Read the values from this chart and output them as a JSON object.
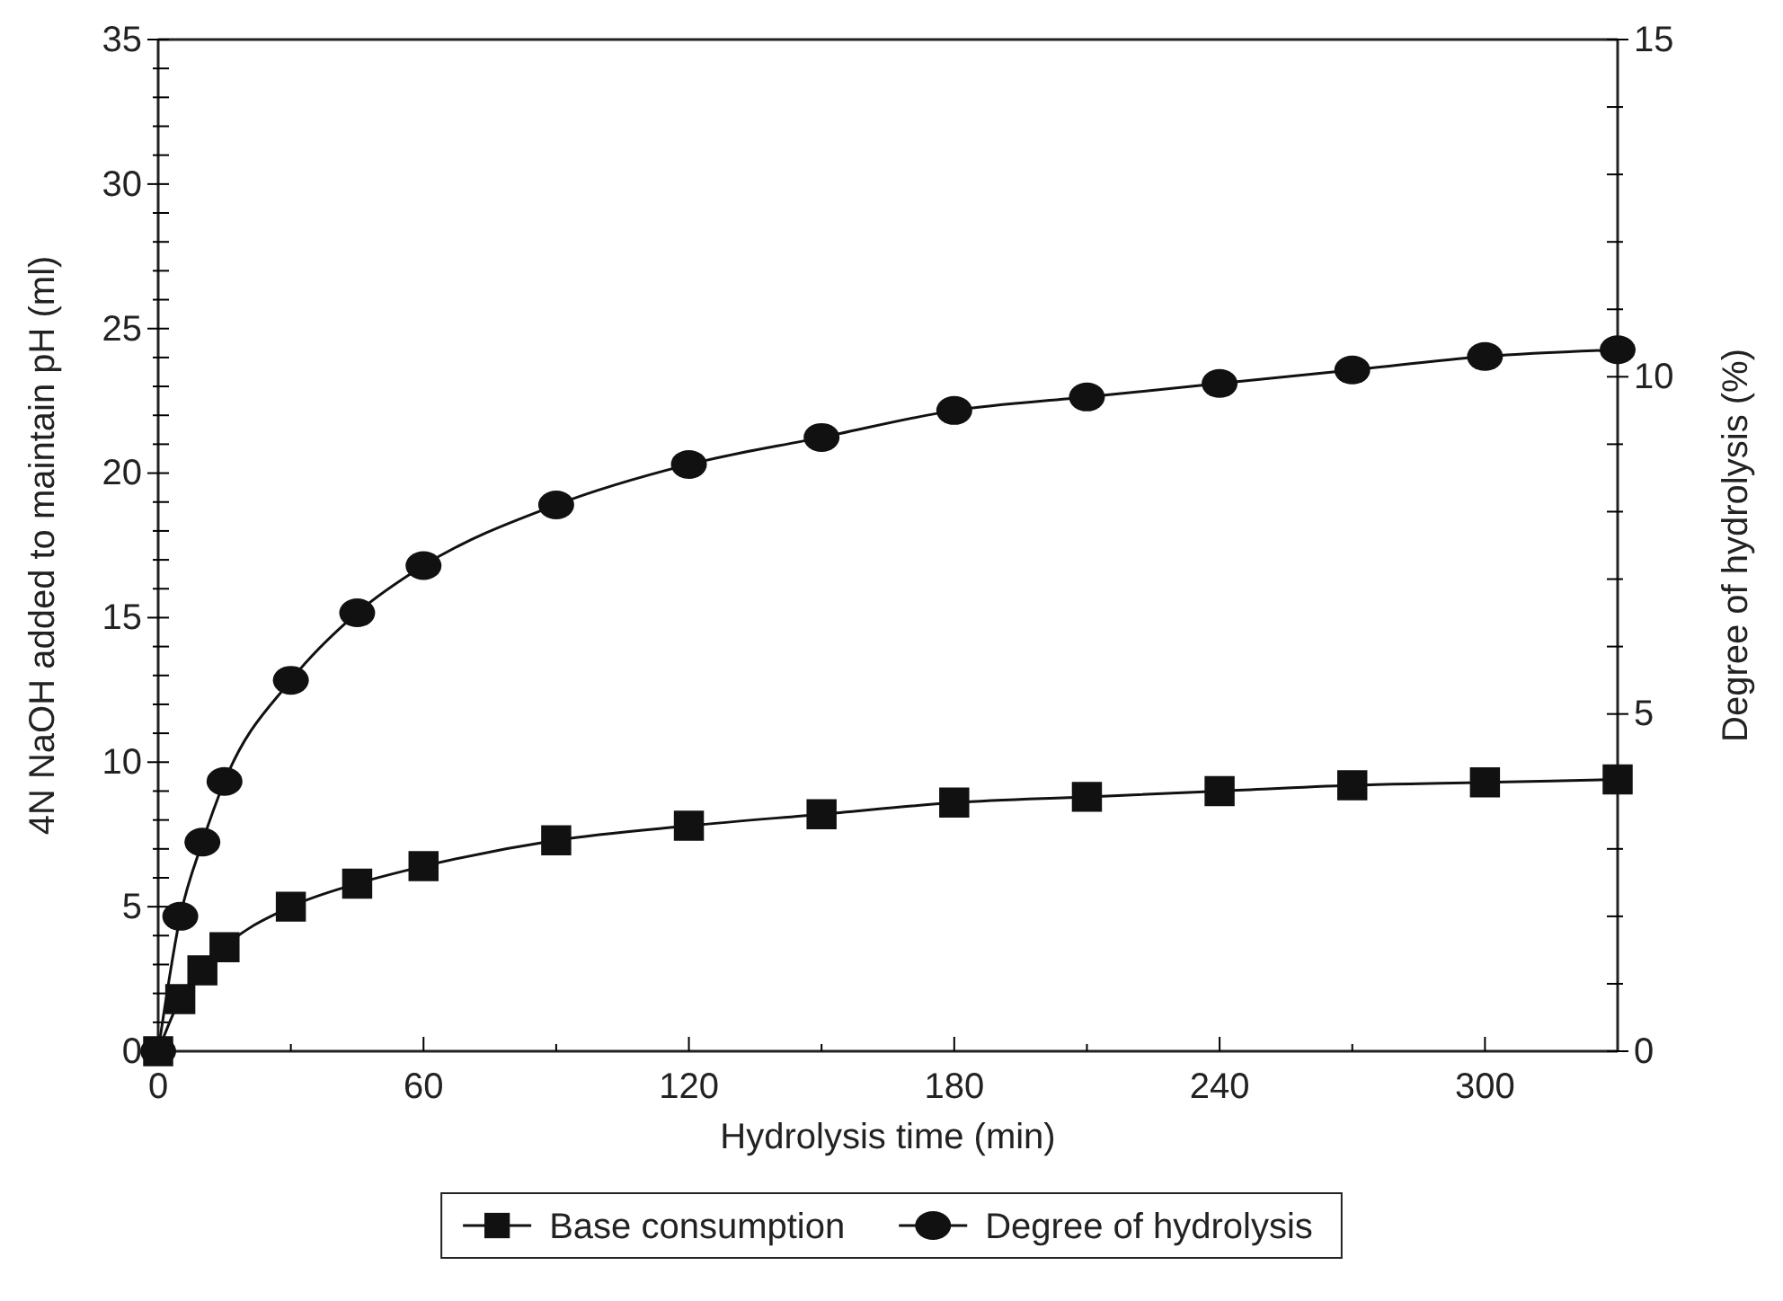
{
  "chart_data": {
    "type": "line",
    "xlabel": "Hydrolysis time (min)",
    "ylabel": "4N NaOH added to maintain pH (ml)",
    "y2label": "Degree of hydrolysis (%)",
    "x": [
      0,
      5,
      10,
      15,
      30,
      45,
      60,
      90,
      120,
      150,
      180,
      210,
      240,
      270,
      300,
      330
    ],
    "xlim": [
      0,
      330
    ],
    "xticks": [
      0,
      {
        "value": 30,
        "label": null
      },
      60,
      {
        "value": 90,
        "label": null
      },
      120,
      {
        "value": 150,
        "label": null
      },
      180,
      {
        "value": 210,
        "label": null
      },
      240,
      {
        "value": 270,
        "label": null
      },
      300,
      {
        "value": 330,
        "label": null
      }
    ],
    "ylim": [
      0,
      35
    ],
    "yticks": [
      0,
      {
        "value": 1,
        "label": null
      },
      {
        "value": 2,
        "label": null
      },
      {
        "value": 3,
        "label": null
      },
      {
        "value": 4,
        "label": null
      },
      5,
      {
        "value": 6,
        "label": null
      },
      {
        "value": 7,
        "label": null
      },
      {
        "value": 8,
        "label": null
      },
      {
        "value": 9,
        "label": null
      },
      10,
      {
        "value": 11,
        "label": null
      },
      {
        "value": 12,
        "label": null
      },
      {
        "value": 13,
        "label": null
      },
      {
        "value": 14,
        "label": null
      },
      15,
      {
        "value": 16,
        "label": null
      },
      {
        "value": 17,
        "label": null
      },
      {
        "value": 18,
        "label": null
      },
      {
        "value": 19,
        "label": null
      },
      20,
      {
        "value": 21,
        "label": null
      },
      {
        "value": 22,
        "label": null
      },
      {
        "value": 23,
        "label": null
      },
      {
        "value": 24,
        "label": null
      },
      25,
      {
        "value": 26,
        "label": null
      },
      {
        "value": 27,
        "label": null
      },
      {
        "value": 28,
        "label": null
      },
      {
        "value": 29,
        "label": null
      },
      30,
      {
        "value": 31,
        "label": null
      },
      {
        "value": 32,
        "label": null
      },
      {
        "value": 33,
        "label": null
      },
      {
        "value": 34,
        "label": null
      },
      35
    ],
    "y2lim": [
      0,
      15
    ],
    "y2ticks": [
      0,
      {
        "value": 1,
        "label": null
      },
      {
        "value": 2,
        "label": null
      },
      {
        "value": 3,
        "label": null
      },
      {
        "value": 4,
        "label": null
      },
      5,
      {
        "value": 6,
        "label": null
      },
      {
        "value": 7,
        "label": null
      },
      {
        "value": 8,
        "label": null
      },
      {
        "value": 9,
        "label": null
      },
      10,
      {
        "value": 11,
        "label": null
      },
      {
        "value": 12,
        "label": null
      },
      {
        "value": 13,
        "label": null
      },
      {
        "value": 14,
        "label": null
      },
      15
    ],
    "series": [
      {
        "name": "Base consumption",
        "color": "#111111",
        "marker": "square",
        "values": [
          0,
          1.8,
          2.8,
          3.6,
          5.0,
          5.8,
          6.4,
          7.3,
          7.8,
          8.2,
          8.6,
          8.8,
          9.0,
          9.2,
          9.3,
          9.4
        ]
      },
      {
        "name": "Degree of hydrolysis",
        "color": "#111111",
        "marker": "circle",
        "axis": "y2",
        "values": [
          0,
          2.0,
          3.1,
          4.0,
          5.5,
          6.5,
          7.2,
          8.1,
          8.7,
          9.1,
          9.5,
          9.7,
          9.9,
          10.1,
          10.3,
          10.4
        ]
      }
    ],
    "legend": "bottom",
    "grid": false,
    "line_style": "solid"
  }
}
